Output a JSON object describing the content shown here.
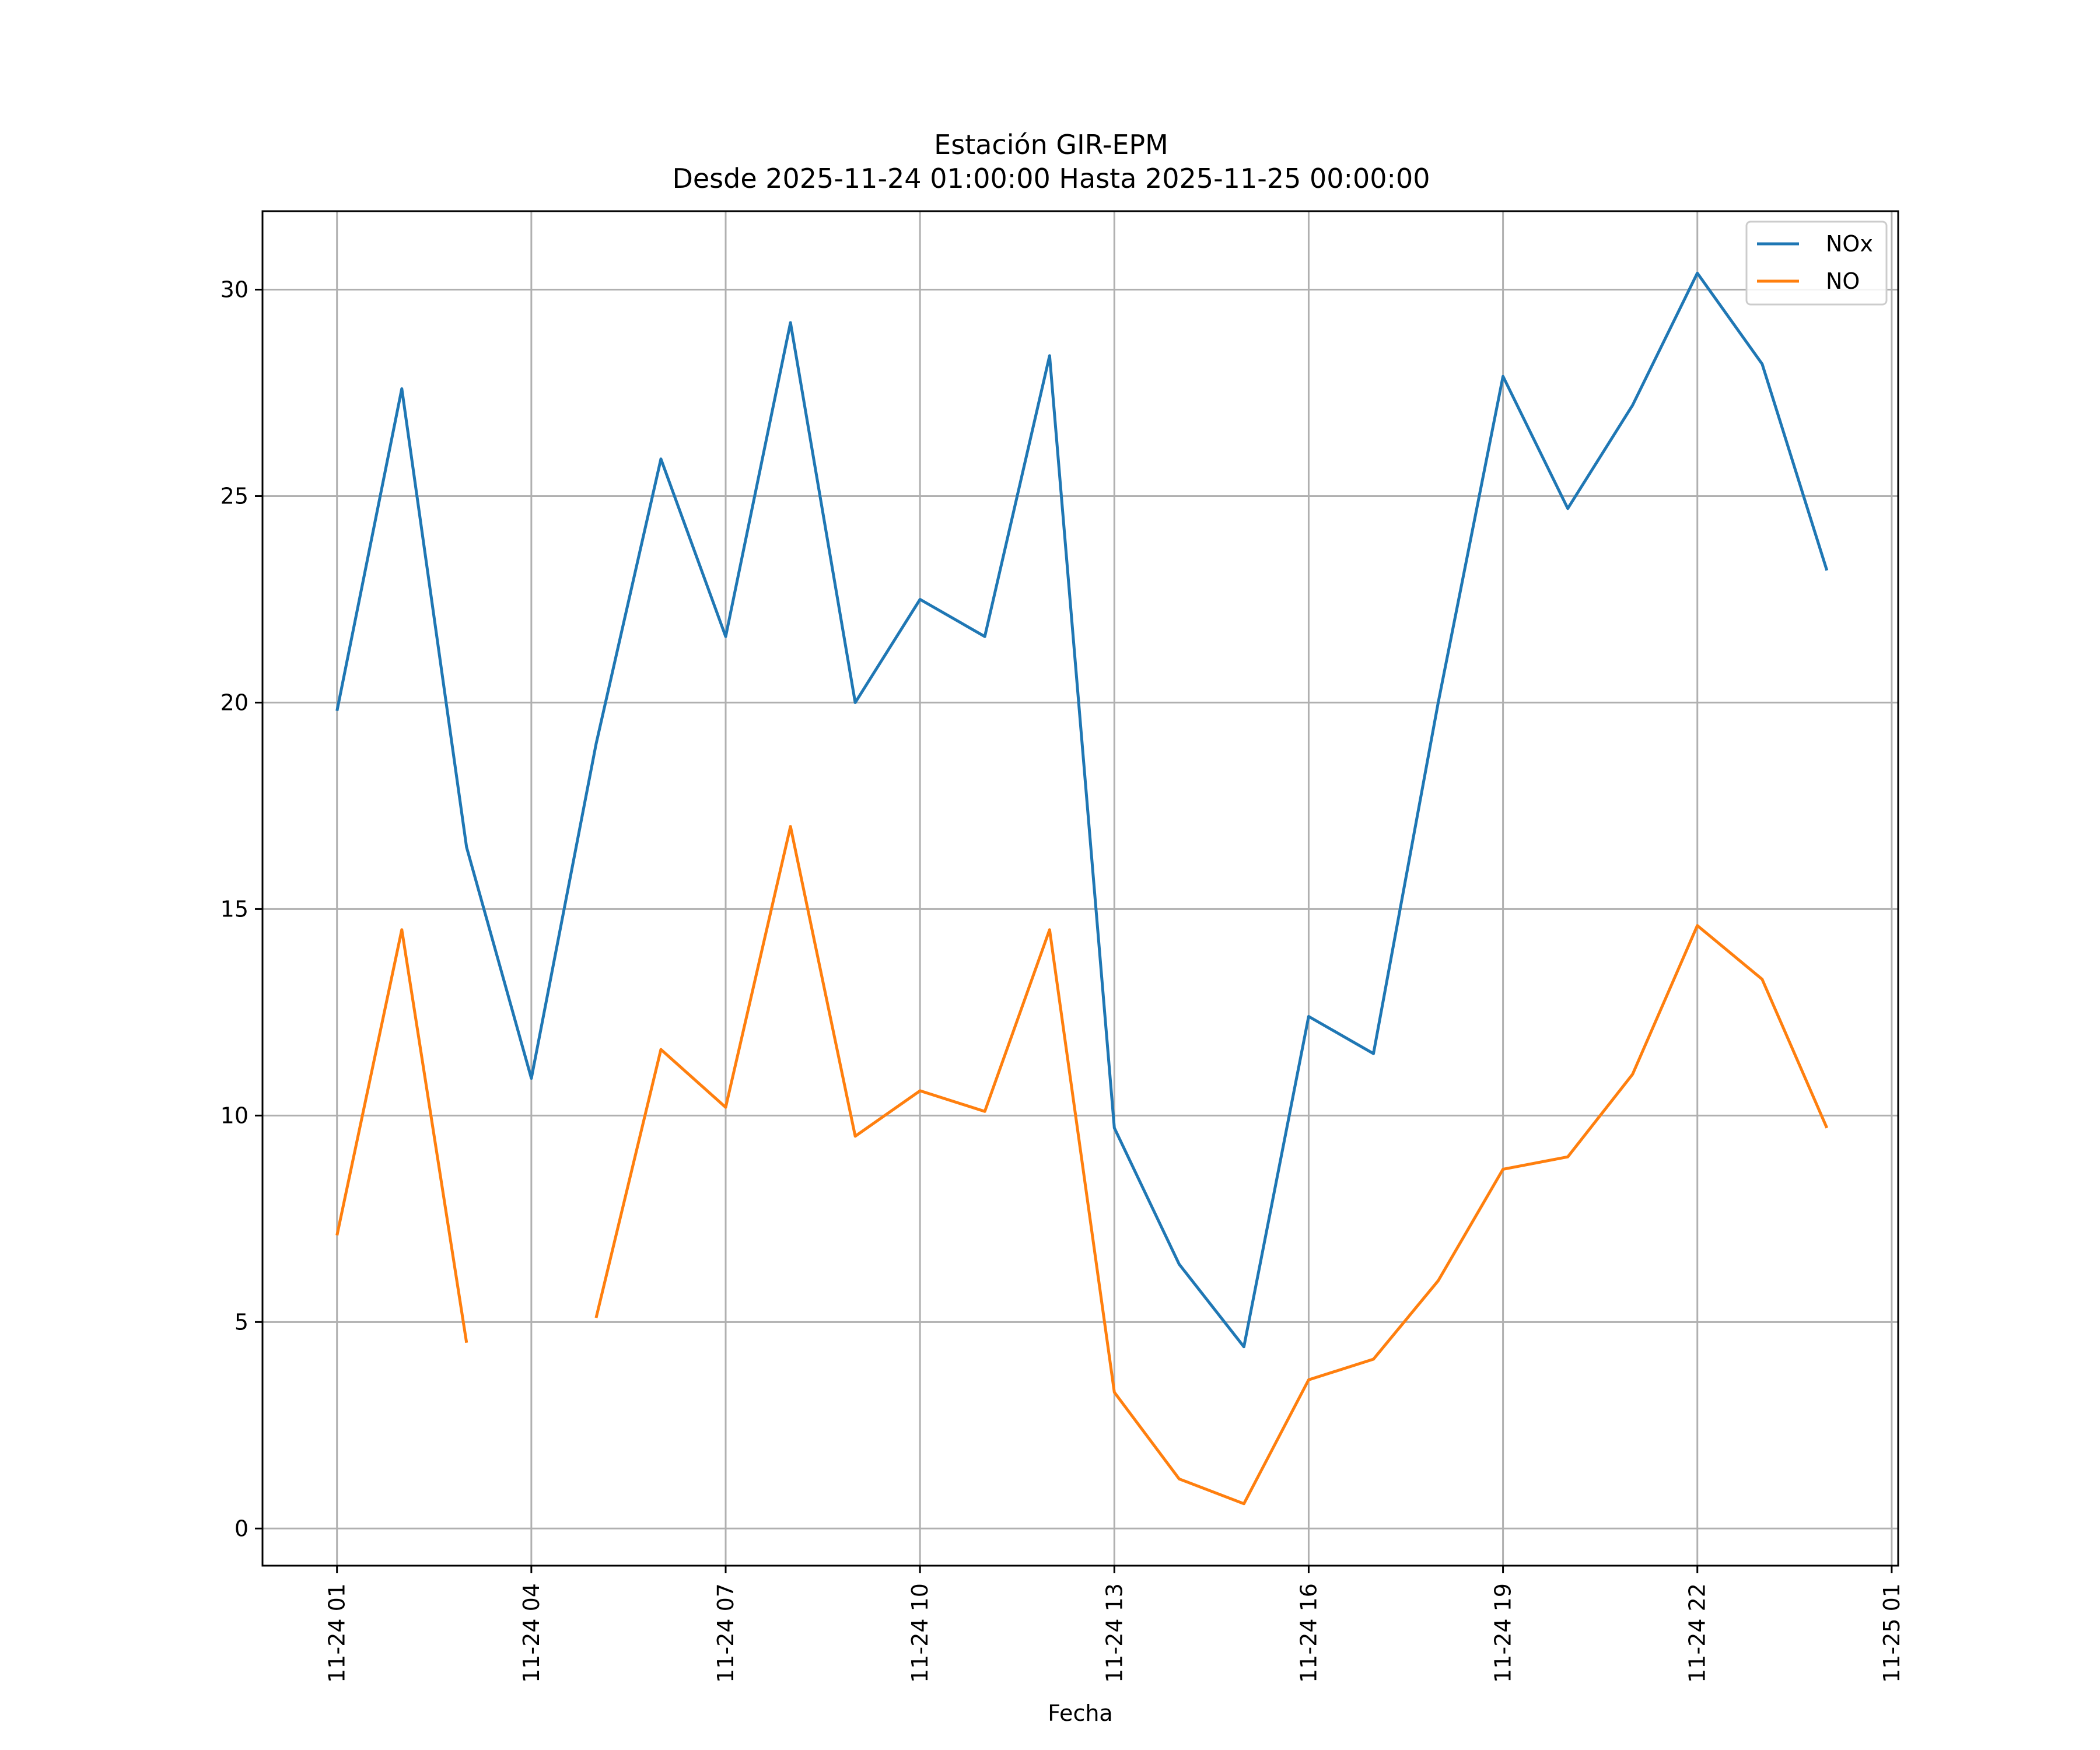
{
  "chart_data": {
    "type": "line",
    "title_line1": "Estación GIR-EPM",
    "title_line2": "Desde 2025-11-24 01:00:00 Hasta 2025-11-25 00:00:00",
    "xlabel": "Fecha",
    "ylabel": "",
    "grid": true,
    "legend_position": "top-right",
    "x_hours": [
      1,
      2,
      3,
      4,
      5,
      6,
      7,
      8,
      9,
      10,
      11,
      12,
      13,
      14,
      15,
      16,
      17,
      18,
      19,
      20,
      21,
      22,
      23,
      24
    ],
    "xlim_hours": [
      -0.15,
      25.1
    ],
    "ylim": [
      -0.9,
      31.9
    ],
    "yticks": [
      0,
      5,
      10,
      15,
      20,
      25,
      30
    ],
    "xticks": [
      {
        "hour": 1,
        "label": "11-24 01"
      },
      {
        "hour": 4,
        "label": "11-24 04"
      },
      {
        "hour": 7,
        "label": "11-24 07"
      },
      {
        "hour": 10,
        "label": "11-24 10"
      },
      {
        "hour": 13,
        "label": "11-24 13"
      },
      {
        "hour": 16,
        "label": "11-24 16"
      },
      {
        "hour": 19,
        "label": "11-24 19"
      },
      {
        "hour": 22,
        "label": "11-24 22"
      },
      {
        "hour": 25,
        "label": "11-25 01"
      }
    ],
    "series": [
      {
        "name": "NOx",
        "color": "#1f77b4",
        "values": [
          19.8,
          27.6,
          16.5,
          10.9,
          19.0,
          25.9,
          21.6,
          29.2,
          20.0,
          22.5,
          21.6,
          28.4,
          9.7,
          6.4,
          4.4,
          12.4,
          11.5,
          20.0,
          27.9,
          24.7,
          27.2,
          30.4,
          28.2,
          23.2
        ]
      },
      {
        "name": "NO",
        "color": "#ff7f0e",
        "values": [
          7.1,
          14.5,
          4.5,
          null,
          5.1,
          11.6,
          10.2,
          17.0,
          9.5,
          10.6,
          10.1,
          14.5,
          3.3,
          1.2,
          0.6,
          3.6,
          4.1,
          6.0,
          8.7,
          9.0,
          11.0,
          14.6,
          13.3,
          9.7
        ]
      }
    ]
  }
}
